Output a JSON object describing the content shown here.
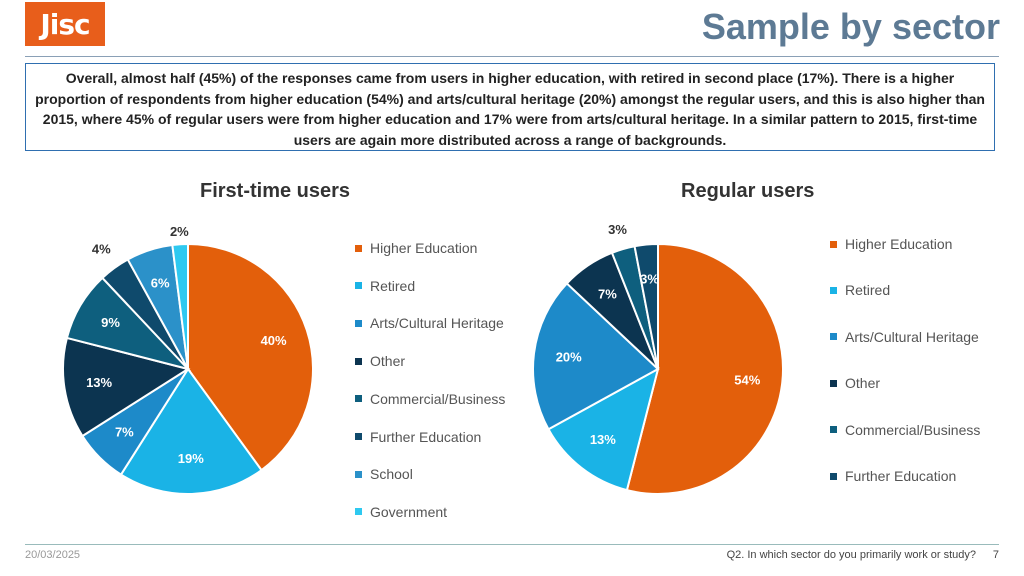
{
  "logo": {
    "text": "Jisc"
  },
  "page_title": "Sample by sector",
  "summary": "Overall, almost half (45%) of the responses came from users in higher education, with retired in second place (17%).  There is a higher proportion of respondents from higher education (54%) and arts/cultural heritage (20%) amongst the regular users, and this is also higher than 2015, where 45% of regular users were from higher education and 17% were from arts/cultural heritage.  In a similar pattern to 2015, first-time users are again more distributed across a range of backgrounds.",
  "footer": {
    "date": "20/03/2025",
    "question": "Q2. In which sector do you primarily work or study?",
    "page": "7"
  },
  "colors": {
    "Higher Education": "#e35f0b",
    "Retired": "#1ab3e6",
    "Arts/Cultural Heritage": "#1d8ac9",
    "Other": "#0c3450",
    "Commercial/Business": "#0e5f7e",
    "Further Education": "#0f4a6c",
    "School": "#2b91c9",
    "Government": "#2ec9f0"
  },
  "chart_data": [
    {
      "type": "pie",
      "title": "First-time users",
      "categories": [
        "Higher Education",
        "Retired",
        "Arts/Cultural Heritage",
        "Other",
        "Commercial/Business",
        "Further Education",
        "School",
        "Government"
      ],
      "values": [
        40,
        19,
        7,
        13,
        9,
        4,
        6,
        2
      ],
      "labels": [
        "40%",
        "19%",
        "7%",
        "13%",
        "9%",
        "4%",
        "6%",
        "2%"
      ],
      "legend": [
        "Higher Education",
        "Retired",
        "Arts/Cultural Heritage",
        "Other",
        "Commercial/Business",
        "Further Education",
        "School",
        "Government"
      ],
      "legend_position": "right"
    },
    {
      "type": "pie",
      "title": "Regular users",
      "categories": [
        "Higher Education",
        "Retired",
        "Arts/Cultural Heritage",
        "Other",
        "Commercial/Business",
        "Further Education"
      ],
      "values": [
        54,
        13,
        20,
        7,
        3,
        3
      ],
      "labels": [
        "54%",
        "13%",
        "20%",
        "7%",
        "3%",
        "3%"
      ],
      "legend": [
        "Higher Education",
        "Retired",
        "Arts/Cultural Heritage",
        "Other",
        "Commercial/Business",
        "Further Education"
      ],
      "legend_position": "right"
    }
  ]
}
